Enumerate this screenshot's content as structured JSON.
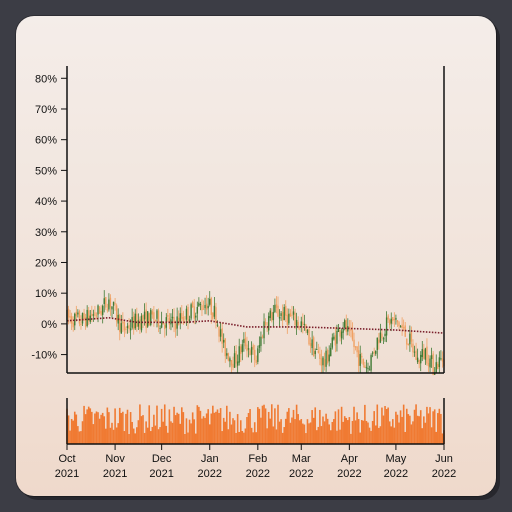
{
  "chart_data": {
    "type": "candlestick",
    "y_tick_labels": [
      "-10%",
      "0%",
      "10%",
      "20%",
      "30%",
      "40%",
      "50%",
      "60%",
      "70%",
      "80%"
    ],
    "y_ticks": [
      -10,
      0,
      10,
      20,
      30,
      40,
      50,
      60,
      70,
      80
    ],
    "ylim": [
      -16,
      84
    ],
    "x_tick_labels": [
      {
        "line1": "Oct",
        "line2": "2021",
        "date": "2021-10-01"
      },
      {
        "line1": "Nov",
        "line2": "2021",
        "date": "2021-11-01"
      },
      {
        "line1": "Dec",
        "line2": "2021",
        "date": "2021-12-01"
      },
      {
        "line1": "Jan",
        "line2": "2022",
        "date": "2022-01-01"
      },
      {
        "line1": "Feb",
        "line2": "2022",
        "date": "2022-02-01"
      },
      {
        "line1": "Mar",
        "line2": "2022",
        "date": "2022-03-01"
      },
      {
        "line1": "Apr",
        "line2": "2022",
        "date": "2022-04-01"
      },
      {
        "line1": "May",
        "line2": "2022",
        "date": "2022-05-01"
      },
      {
        "line1": "Jun",
        "line2": "2022",
        "date": "2022-06-01"
      }
    ],
    "xlim": [
      "2021-10-01",
      "2022-06-01"
    ],
    "price_path": [
      {
        "date": "2021-10-01",
        "value": 2
      },
      {
        "date": "2021-10-10",
        "value": 1
      },
      {
        "date": "2021-10-22",
        "value": 4
      },
      {
        "date": "2021-10-28",
        "value": 8
      },
      {
        "date": "2021-11-06",
        "value": -2
      },
      {
        "date": "2021-11-15",
        "value": 1
      },
      {
        "date": "2021-11-25",
        "value": 2
      },
      {
        "date": "2021-12-08",
        "value": 0
      },
      {
        "date": "2021-12-20",
        "value": 4
      },
      {
        "date": "2021-12-30",
        "value": 7
      },
      {
        "date": "2022-01-05",
        "value": 3
      },
      {
        "date": "2022-01-10",
        "value": -8
      },
      {
        "date": "2022-01-17",
        "value": -12
      },
      {
        "date": "2022-01-24",
        "value": -6
      },
      {
        "date": "2022-01-31",
        "value": -12
      },
      {
        "date": "2022-02-05",
        "value": 0
      },
      {
        "date": "2022-02-12",
        "value": 4
      },
      {
        "date": "2022-02-22",
        "value": 2
      },
      {
        "date": "2022-03-01",
        "value": 0
      },
      {
        "date": "2022-03-09",
        "value": -8
      },
      {
        "date": "2022-03-16",
        "value": -13
      },
      {
        "date": "2022-03-22",
        "value": -5
      },
      {
        "date": "2022-03-28",
        "value": 0
      },
      {
        "date": "2022-04-03",
        "value": -6
      },
      {
        "date": "2022-04-08",
        "value": -12
      },
      {
        "date": "2022-04-13",
        "value": -14
      },
      {
        "date": "2022-04-20",
        "value": -4
      },
      {
        "date": "2022-04-27",
        "value": 1
      },
      {
        "date": "2022-05-03",
        "value": 0
      },
      {
        "date": "2022-05-10",
        "value": -6
      },
      {
        "date": "2022-05-15",
        "value": -12
      },
      {
        "date": "2022-05-20",
        "value": -9
      },
      {
        "date": "2022-05-25",
        "value": -14
      },
      {
        "date": "2022-06-01",
        "value": -11
      }
    ],
    "moving_average": [
      {
        "date": "2021-10-01",
        "value": 1
      },
      {
        "date": "2021-10-28",
        "value": 2
      },
      {
        "date": "2021-11-15",
        "value": 0.5
      },
      {
        "date": "2021-12-15",
        "value": 0.5
      },
      {
        "date": "2022-01-01",
        "value": 1
      },
      {
        "date": "2022-01-25",
        "value": -1
      },
      {
        "date": "2022-03-01",
        "value": -1
      },
      {
        "date": "2022-04-01",
        "value": -1.5
      },
      {
        "date": "2022-05-01",
        "value": -2
      },
      {
        "date": "2022-06-01",
        "value": -3
      }
    ],
    "colors": {
      "up": "#3f7a34",
      "down": "#f0a062",
      "moving_average": "#7a1f2b",
      "volume": "#f07a32",
      "axis": "#111111"
    }
  }
}
